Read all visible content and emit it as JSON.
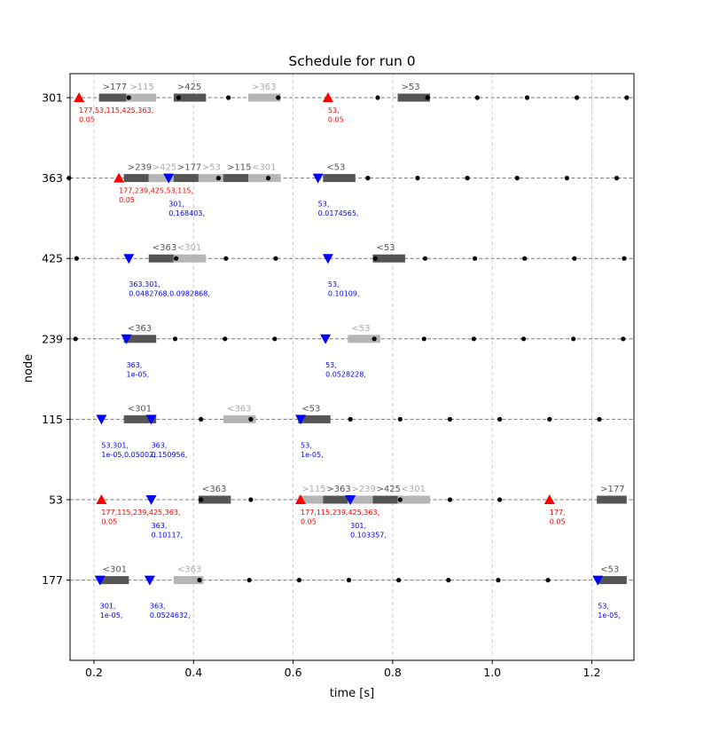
{
  "chart_data": {
    "type": "scatter",
    "title": "Schedule for run 0",
    "xlabel": "time [s]",
    "ylabel": "node",
    "xlim": [
      0.15,
      1.28
    ],
    "xticks": [
      "0.2",
      "0.4",
      "0.6",
      "0.8",
      "1.0",
      "1.2"
    ],
    "xtick_values": [
      0.2,
      0.4,
      0.6,
      0.8,
      1.0,
      1.2
    ],
    "nodes": [
      "301",
      "363",
      "425",
      "239",
      "115",
      "53",
      "177"
    ],
    "grid": true,
    "colors": {
      "dark_bar": "#555555",
      "light_bar": "#b5b5b5",
      "send": "#ff0000",
      "receive": "#0000ff",
      "dot": "#000000",
      "grid": "#cccccc",
      "track": "#777777"
    },
    "ticks_per_node": {
      "301": [
        0.27,
        0.37,
        0.47,
        0.57,
        0.77,
        0.87,
        0.97,
        1.07,
        1.17,
        1.27
      ],
      "363": [
        0.15,
        0.25,
        0.35,
        0.45,
        0.55,
        0.75,
        0.85,
        0.95,
        1.05,
        1.15,
        1.25
      ],
      "425": [
        0.165,
        0.365,
        0.465,
        0.565,
        0.765,
        0.865,
        0.965,
        1.065,
        1.165,
        1.265
      ],
      "239": [
        0.163,
        0.363,
        0.463,
        0.563,
        0.763,
        0.863,
        0.963,
        1.063,
        1.163,
        1.263
      ],
      "115": [
        0.415,
        0.515,
        0.715,
        0.815,
        0.915,
        1.015,
        1.115,
        1.215
      ],
      "53": [
        0.415,
        0.515,
        0.715,
        0.815,
        0.915,
        1.015
      ],
      "177": [
        0.412,
        0.512,
        0.612,
        0.712,
        0.812,
        0.912,
        1.012,
        1.112
      ]
    },
    "intervals": [
      {
        "node": "301",
        "start": 0.21,
        "end": 0.265,
        "shade": "dark",
        "label": ">177"
      },
      {
        "node": "301",
        "start": 0.265,
        "end": 0.325,
        "shade": "light",
        "label": ">115"
      },
      {
        "node": "301",
        "start": 0.36,
        "end": 0.425,
        "shade": "dark",
        "label": ">425"
      },
      {
        "node": "301",
        "start": 0.51,
        "end": 0.575,
        "shade": "light",
        "label": ">363"
      },
      {
        "node": "301",
        "start": 0.81,
        "end": 0.875,
        "shade": "dark",
        "label": ">53"
      },
      {
        "node": "363",
        "start": 0.26,
        "end": 0.31,
        "shade": "dark",
        "label": ">239"
      },
      {
        "node": "363",
        "start": 0.31,
        "end": 0.36,
        "shade": "light",
        "label": ">425"
      },
      {
        "node": "363",
        "start": 0.36,
        "end": 0.41,
        "shade": "dark",
        "label": ">177"
      },
      {
        "node": "363",
        "start": 0.41,
        "end": 0.46,
        "shade": "light",
        "label": ">53"
      },
      {
        "node": "363",
        "start": 0.46,
        "end": 0.51,
        "shade": "dark",
        "label": ">115"
      },
      {
        "node": "363",
        "start": 0.51,
        "end": 0.575,
        "shade": "light",
        "label": "<301"
      },
      {
        "node": "363",
        "start": 0.66,
        "end": 0.725,
        "shade": "dark",
        "label": "<53"
      },
      {
        "node": "425",
        "start": 0.31,
        "end": 0.36,
        "shade": "dark",
        "label": "<363"
      },
      {
        "node": "425",
        "start": 0.36,
        "end": 0.425,
        "shade": "light",
        "label": "<301"
      },
      {
        "node": "425",
        "start": 0.76,
        "end": 0.825,
        "shade": "dark",
        "label": "<53"
      },
      {
        "node": "239",
        "start": 0.26,
        "end": 0.325,
        "shade": "dark",
        "label": "<363"
      },
      {
        "node": "239",
        "start": 0.71,
        "end": 0.775,
        "shade": "light",
        "label": "<53"
      },
      {
        "node": "115",
        "start": 0.26,
        "end": 0.325,
        "shade": "dark",
        "label": "<301"
      },
      {
        "node": "115",
        "start": 0.46,
        "end": 0.525,
        "shade": "light",
        "label": "<363"
      },
      {
        "node": "115",
        "start": 0.61,
        "end": 0.675,
        "shade": "dark",
        "label": "<53"
      },
      {
        "node": "53",
        "start": 0.41,
        "end": 0.475,
        "shade": "dark",
        "label": "<363"
      },
      {
        "node": "53",
        "start": 0.61,
        "end": 0.66,
        "shade": "light",
        "label": ">115"
      },
      {
        "node": "53",
        "start": 0.66,
        "end": 0.71,
        "shade": "dark",
        "label": ">363"
      },
      {
        "node": "53",
        "start": 0.71,
        "end": 0.76,
        "shade": "light",
        "label": ">239"
      },
      {
        "node": "53",
        "start": 0.76,
        "end": 0.81,
        "shade": "dark",
        "label": ">425"
      },
      {
        "node": "53",
        "start": 0.81,
        "end": 0.875,
        "shade": "light",
        "label": "<301"
      },
      {
        "node": "53",
        "start": 1.21,
        "end": 1.27,
        "shade": "dark",
        "label": ">177"
      },
      {
        "node": "177",
        "start": 0.21,
        "end": 0.27,
        "shade": "dark",
        "label": "<301"
      },
      {
        "node": "177",
        "start": 0.36,
        "end": 0.42,
        "shade": "light",
        "label": "<363"
      },
      {
        "node": "177",
        "start": 1.21,
        "end": 1.27,
        "shade": "dark",
        "label": "<53"
      }
    ],
    "events": [
      {
        "node": "301",
        "t": 0.17,
        "kind": "send",
        "lines": [
          "177,53,115,425,363,",
          "0.05"
        ]
      },
      {
        "node": "301",
        "t": 0.67,
        "kind": "send",
        "lines": [
          "53,",
          "0.05"
        ]
      },
      {
        "node": "363",
        "t": 0.25,
        "kind": "send",
        "lines": [
          "177,239,425,53,115,",
          "0.05"
        ]
      },
      {
        "node": "363",
        "t": 0.35,
        "kind": "receive",
        "lines": [
          "301,",
          "0.168403,"
        ]
      },
      {
        "node": "363",
        "t": 0.65,
        "kind": "receive",
        "lines": [
          "53,",
          "0.0174565,"
        ]
      },
      {
        "node": "425",
        "t": 0.27,
        "kind": "receive",
        "lines": [
          "363,301,",
          "0.0482768,0.0982868,"
        ]
      },
      {
        "node": "425",
        "t": 0.67,
        "kind": "receive",
        "lines": [
          "53,",
          "0.10109,"
        ]
      },
      {
        "node": "239",
        "t": 0.265,
        "kind": "receive",
        "lines": [
          "363,",
          "1e-05,"
        ]
      },
      {
        "node": "239",
        "t": 0.665,
        "kind": "receive",
        "lines": [
          "53,",
          "0.0528228,"
        ]
      },
      {
        "node": "115",
        "t": 0.215,
        "kind": "receive",
        "lines": [
          "53,301,",
          "1e-05,0.05002,"
        ]
      },
      {
        "node": "115",
        "t": 0.315,
        "kind": "receive",
        "lines": [
          "363,",
          "0.150956,"
        ]
      },
      {
        "node": "115",
        "t": 0.615,
        "kind": "receive",
        "lines": [
          "53,",
          "1e-05,"
        ]
      },
      {
        "node": "53",
        "t": 0.215,
        "kind": "send",
        "lines": [
          "177,115,239,425,363,",
          "0.05"
        ]
      },
      {
        "node": "53",
        "t": 0.315,
        "kind": "receive",
        "lines": [
          "363,",
          "0.10117,"
        ]
      },
      {
        "node": "53",
        "t": 0.615,
        "kind": "send",
        "lines": [
          "177,115,239,425,363,",
          "0.05"
        ]
      },
      {
        "node": "53",
        "t": 0.715,
        "kind": "receive",
        "lines": [
          "301,",
          "0.103357,"
        ]
      },
      {
        "node": "53",
        "t": 1.115,
        "kind": "send",
        "lines": [
          "177,",
          "0.05"
        ]
      },
      {
        "node": "177",
        "t": 0.212,
        "kind": "receive",
        "lines": [
          "301,",
          "1e-05,"
        ]
      },
      {
        "node": "177",
        "t": 0.312,
        "kind": "receive",
        "lines": [
          "363,",
          "0.0524632,"
        ]
      },
      {
        "node": "177",
        "t": 1.212,
        "kind": "receive",
        "lines": [
          "53,",
          "1e-05,"
        ]
      }
    ]
  }
}
